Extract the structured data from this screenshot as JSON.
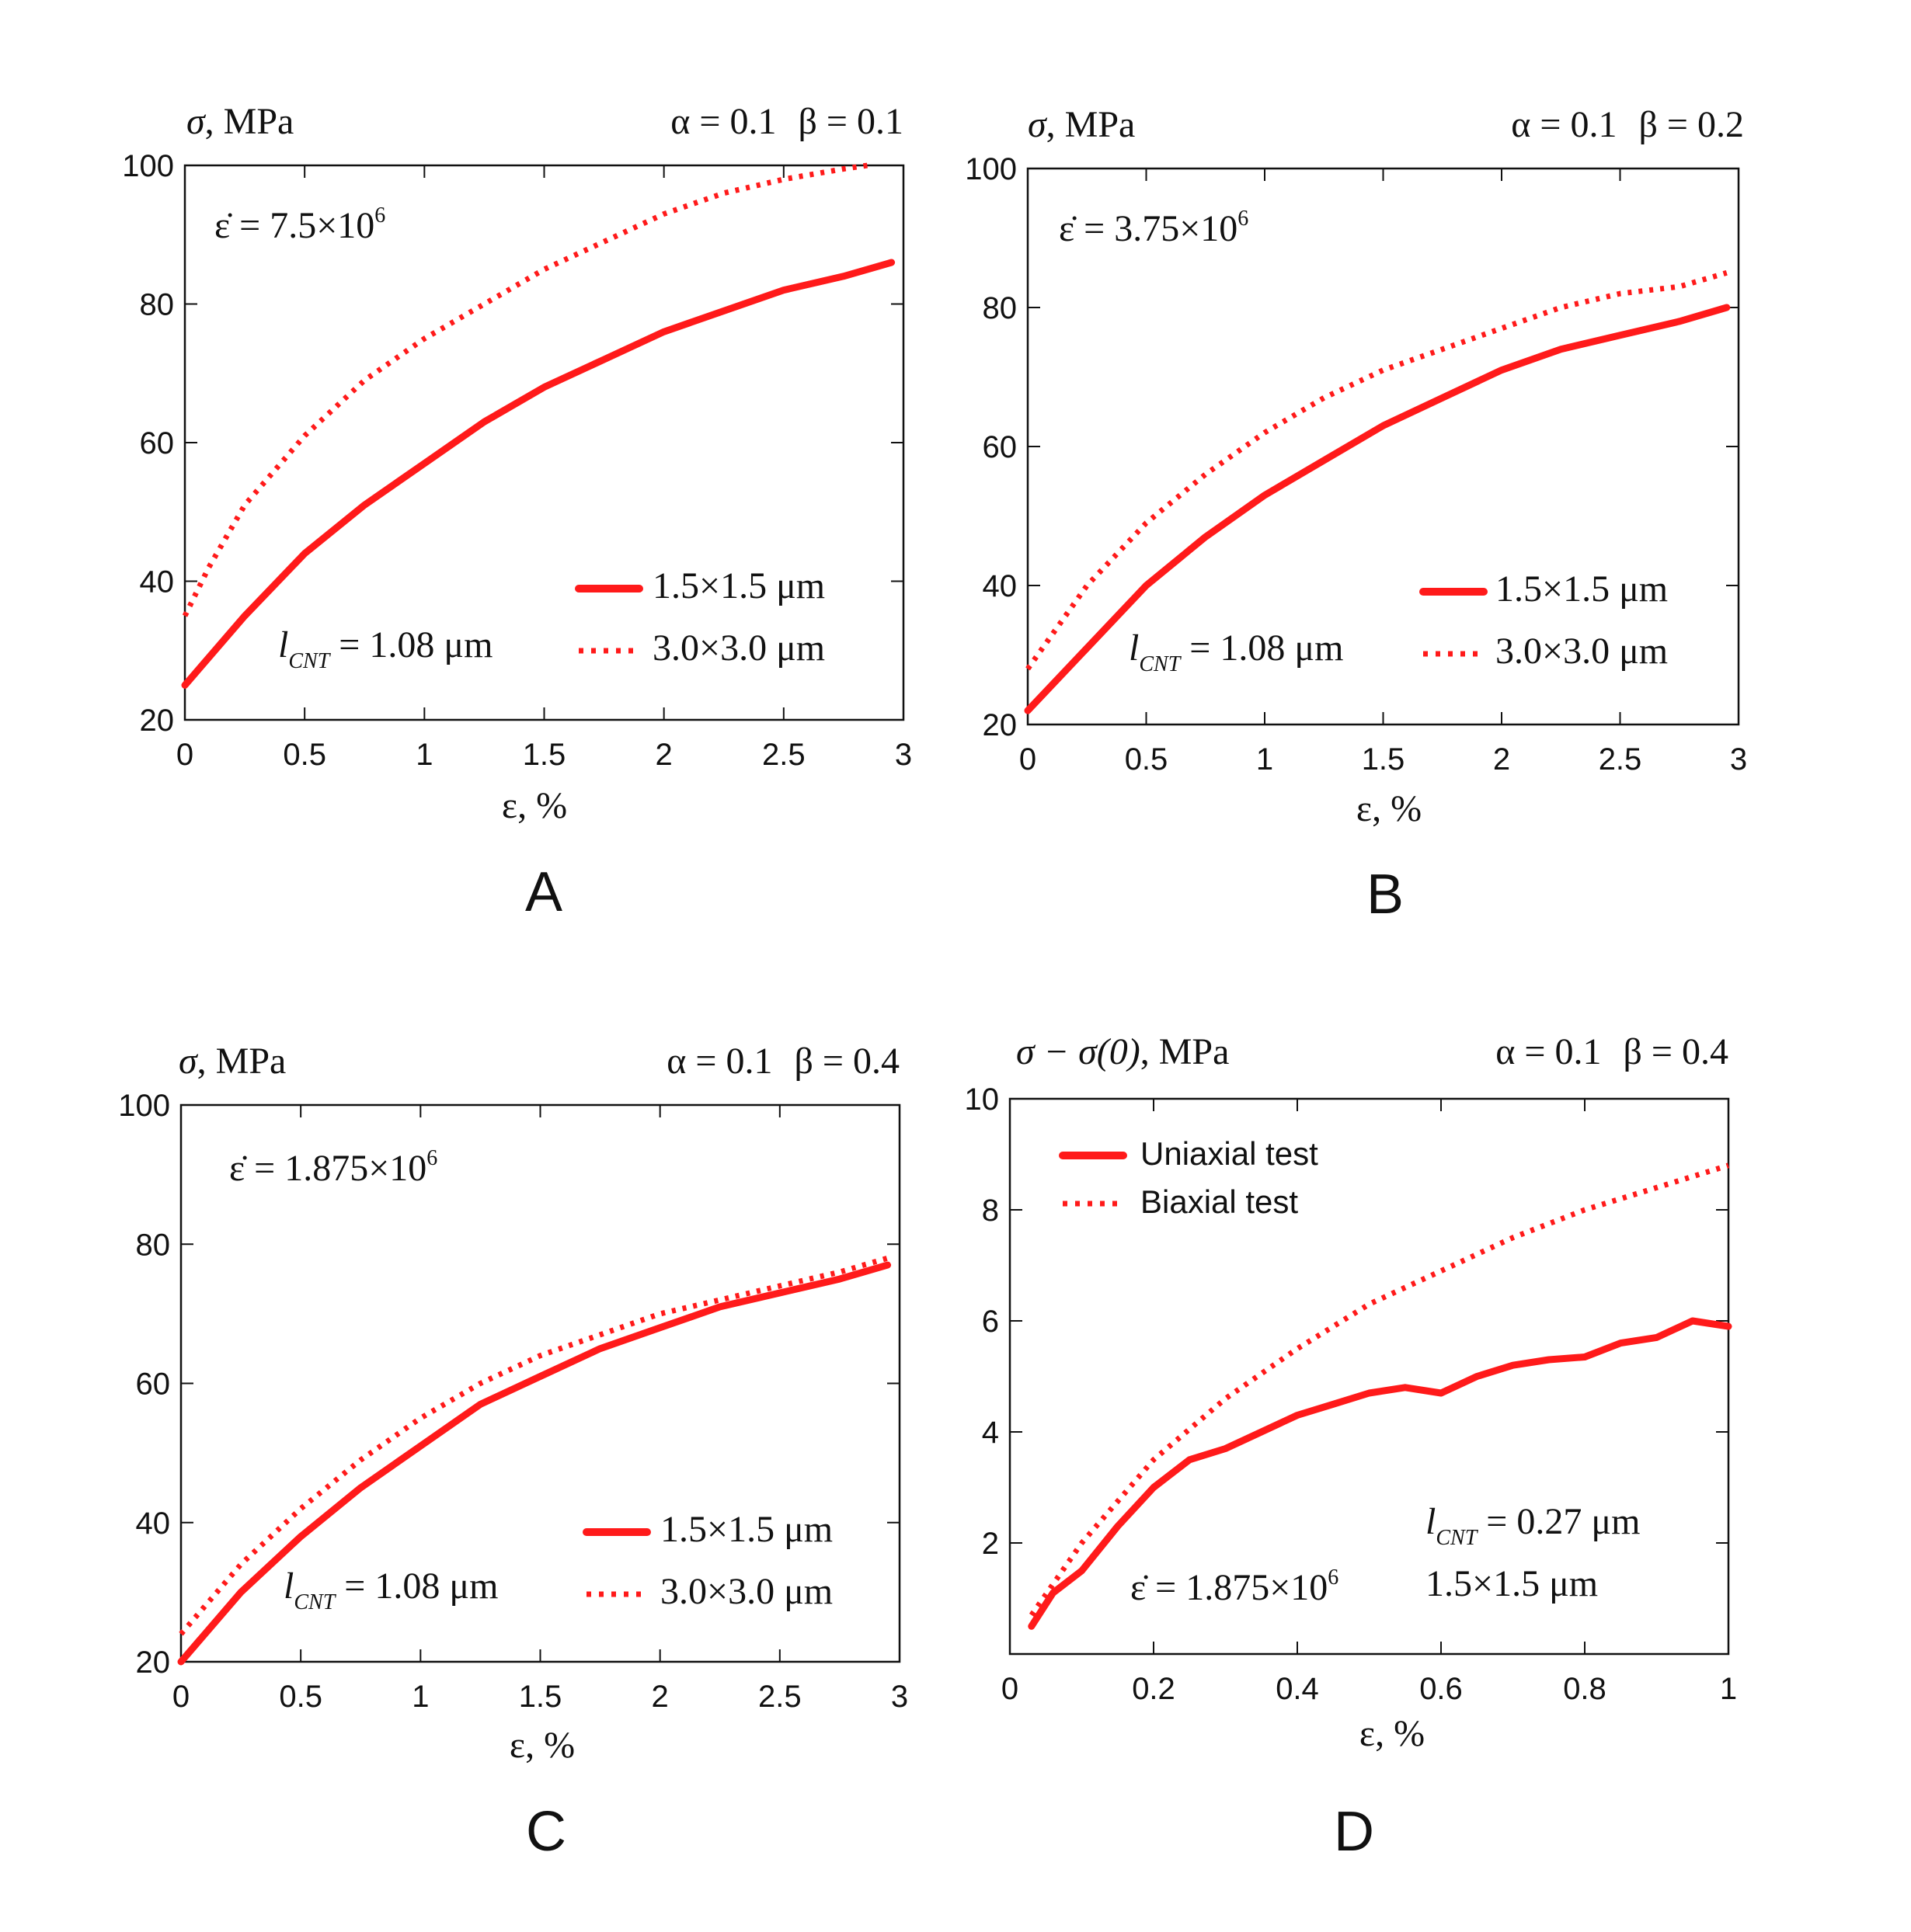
{
  "chart_data": [
    {
      "panel_label": "A",
      "type": "line",
      "ylabel_symbol": "σ",
      "ylabel_unit": ", MPa",
      "params": {
        "alpha": "α = 0.1",
        "beta": "β = 0.1"
      },
      "rate": {
        "main": "ε̇ = 7.5×10",
        "sup": "6"
      },
      "lcnt": {
        "l": "l",
        "sub": "CNT",
        "rest": " = 1.08 μm"
      },
      "xlabel": "ε, %",
      "xlim": [
        0,
        3
      ],
      "ylim": [
        20,
        100
      ],
      "xticks": [
        0,
        0.5,
        1,
        1.5,
        2,
        2.5,
        3
      ],
      "xtick_labels": [
        "0",
        "0.5",
        "1",
        "1.5",
        "2",
        "2.5",
        "3"
      ],
      "yticks": [
        20,
        40,
        60,
        80,
        100
      ],
      "ytick_labels": [
        "20",
        "40",
        "60",
        "80",
        "100"
      ],
      "series": [
        {
          "name": "1.5×1.5 μm",
          "style": "solid",
          "x": [
            0,
            0.25,
            0.5,
            0.75,
            1,
            1.25,
            1.5,
            1.75,
            2,
            2.25,
            2.5,
            2.75,
            2.95
          ],
          "y": [
            25,
            35,
            44,
            51,
            57,
            63,
            68,
            72,
            76,
            79,
            82,
            84,
            86
          ]
        },
        {
          "name": "3.0×3.0 μm",
          "style": "dotted",
          "x": [
            0,
            0.1,
            0.25,
            0.5,
            0.75,
            1,
            1.25,
            1.5,
            1.75,
            2,
            2.25,
            2.5,
            2.75,
            2.85
          ],
          "y": [
            35,
            42,
            51,
            61,
            69,
            75,
            80,
            85,
            89,
            93,
            96,
            98,
            99.5,
            100
          ]
        }
      ]
    },
    {
      "panel_label": "B",
      "type": "line",
      "ylabel_symbol": "σ",
      "ylabel_unit": ", MPa",
      "params": {
        "alpha": "α = 0.1",
        "beta": "β = 0.2"
      },
      "rate": {
        "main": "ε̇ = 3.75×10",
        "sup": "6"
      },
      "lcnt": {
        "l": "l",
        "sub": "CNT",
        "rest": " = 1.08 μm"
      },
      "xlabel": "ε, %",
      "xlim": [
        0,
        3
      ],
      "ylim": [
        20,
        100
      ],
      "xticks": [
        0,
        0.5,
        1,
        1.5,
        2,
        2.5,
        3
      ],
      "xtick_labels": [
        "0",
        "0.5",
        "1",
        "1.5",
        "2",
        "2.5",
        "3"
      ],
      "yticks": [
        20,
        40,
        60,
        80,
        100
      ],
      "ytick_labels": [
        "20",
        "40",
        "60",
        "80",
        "100"
      ],
      "series": [
        {
          "name": "1.5×1.5 μm",
          "style": "solid",
          "x": [
            0,
            0.25,
            0.5,
            0.75,
            1,
            1.25,
            1.5,
            1.75,
            2,
            2.25,
            2.5,
            2.75,
            2.95
          ],
          "y": [
            22,
            31,
            40,
            47,
            53,
            58,
            63,
            67,
            71,
            74,
            76,
            78,
            80
          ]
        },
        {
          "name": "3.0×3.0 μm",
          "style": "dotted",
          "x": [
            0,
            0.25,
            0.5,
            0.75,
            1,
            1.25,
            1.5,
            1.75,
            2,
            2.25,
            2.5,
            2.75,
            2.95
          ],
          "y": [
            28,
            40,
            49,
            56,
            62,
            67,
            71,
            74,
            77,
            80,
            82,
            83,
            85
          ]
        }
      ]
    },
    {
      "panel_label": "C",
      "type": "line",
      "ylabel_symbol": "σ",
      "ylabel_unit": ", MPa",
      "params": {
        "alpha": "α = 0.1",
        "beta": "β = 0.4"
      },
      "rate": {
        "main": "ε̇ = 1.875×10",
        "sup": "6"
      },
      "lcnt": {
        "l": "l",
        "sub": "CNT",
        "rest": " = 1.08 μm"
      },
      "xlabel": "ε, %",
      "xlim": [
        0,
        3
      ],
      "ylim": [
        20,
        100
      ],
      "xticks": [
        0,
        0.5,
        1,
        1.5,
        2,
        2.5,
        3
      ],
      "xtick_labels": [
        "0",
        "0.5",
        "1",
        "1.5",
        "2",
        "2.5",
        "3"
      ],
      "yticks": [
        20,
        40,
        60,
        80,
        100
      ],
      "ytick_labels": [
        "20",
        "40",
        "60",
        "80",
        "100"
      ],
      "series": [
        {
          "name": "1.5×1.5 μm",
          "style": "solid",
          "x": [
            0,
            0.25,
            0.5,
            0.75,
            1,
            1.25,
            1.5,
            1.75,
            2,
            2.25,
            2.5,
            2.75,
            2.95
          ],
          "y": [
            20,
            30,
            38,
            45,
            51,
            57,
            61,
            65,
            68,
            71,
            73,
            75,
            77
          ]
        },
        {
          "name": "3.0×3.0 μm",
          "style": "dotted",
          "x": [
            0,
            0.25,
            0.5,
            0.75,
            1,
            1.25,
            1.5,
            1.75,
            2,
            2.25,
            2.5,
            2.75,
            2.95
          ],
          "y": [
            24,
            34,
            42,
            49,
            55,
            60,
            64,
            67,
            70,
            72,
            74,
            76,
            78
          ]
        }
      ]
    },
    {
      "panel_label": "D",
      "type": "line",
      "ylabel_symbol": "σ − σ(0)",
      "ylabel_unit": ", MPa",
      "params": {
        "alpha": "α = 0.1",
        "beta": "β = 0.4"
      },
      "rate": {
        "main": "ε̇ = 1.875×10",
        "sup": "6"
      },
      "lcnt": {
        "l": "l",
        "sub": "CNT",
        "rest": " = 0.27 μm"
      },
      "size": "1.5×1.5 μm",
      "xlabel": "ε, %",
      "xlim": [
        0,
        1
      ],
      "ylim": [
        0,
        10
      ],
      "xticks": [
        0,
        0.2,
        0.4,
        0.6,
        0.8,
        1
      ],
      "xtick_labels": [
        "0",
        "0.2",
        "0.4",
        "0.6",
        "0.8",
        "1"
      ],
      "yticks": [
        2,
        4,
        6,
        8,
        10
      ],
      "ytick_labels": [
        "2",
        "4",
        "6",
        "8",
        "10"
      ],
      "series": [
        {
          "name": "Uniaxial test",
          "style": "solid",
          "x": [
            0.03,
            0.06,
            0.1,
            0.15,
            0.2,
            0.25,
            0.3,
            0.35,
            0.4,
            0.45,
            0.5,
            0.55,
            0.6,
            0.65,
            0.7,
            0.75,
            0.8,
            0.85,
            0.9,
            0.95,
            1.0
          ],
          "y": [
            0.5,
            1.1,
            1.5,
            2.3,
            3.0,
            3.5,
            3.7,
            4.0,
            4.3,
            4.5,
            4.7,
            4.8,
            4.7,
            5.0,
            5.2,
            5.3,
            5.35,
            5.6,
            5.7,
            6.0,
            5.9
          ]
        },
        {
          "name": "Biaxial test",
          "style": "dotted",
          "x": [
            0.03,
            0.1,
            0.2,
            0.3,
            0.4,
            0.5,
            0.6,
            0.7,
            0.8,
            0.9,
            1.0
          ],
          "y": [
            0.7,
            2.0,
            3.5,
            4.6,
            5.5,
            6.3,
            6.9,
            7.5,
            8.0,
            8.4,
            8.8
          ]
        }
      ]
    }
  ]
}
